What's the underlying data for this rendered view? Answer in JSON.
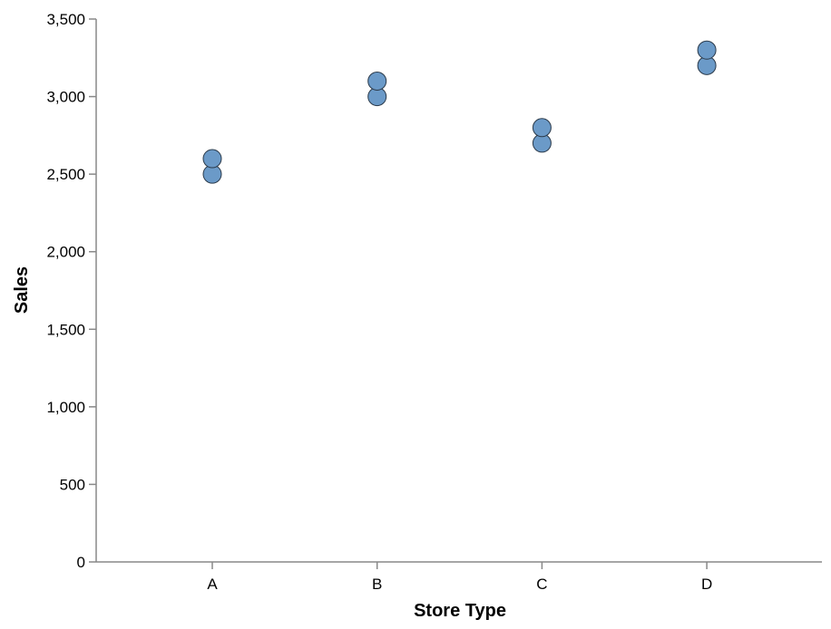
{
  "chart_data": {
    "type": "scatter",
    "title": "",
    "xlabel": "Store Type",
    "ylabel": "Sales",
    "categories": [
      "A",
      "B",
      "C",
      "D"
    ],
    "ylim": [
      0,
      3500
    ],
    "yticks": [
      0,
      500,
      1000,
      1500,
      2000,
      2500,
      3000,
      3500
    ],
    "ytick_labels": [
      "0",
      "500",
      "1,000",
      "1,500",
      "2,000",
      "2,500",
      "3,000",
      "3,500"
    ],
    "grid": false,
    "legend": "none",
    "point_color": "#6b9ac8",
    "points": [
      {
        "x": "A",
        "y": 2500
      },
      {
        "x": "A",
        "y": 2600
      },
      {
        "x": "B",
        "y": 3000
      },
      {
        "x": "B",
        "y": 3100
      },
      {
        "x": "C",
        "y": 2700
      },
      {
        "x": "C",
        "y": 2800
      },
      {
        "x": "D",
        "y": 3200
      },
      {
        "x": "D",
        "y": 3300
      }
    ]
  }
}
